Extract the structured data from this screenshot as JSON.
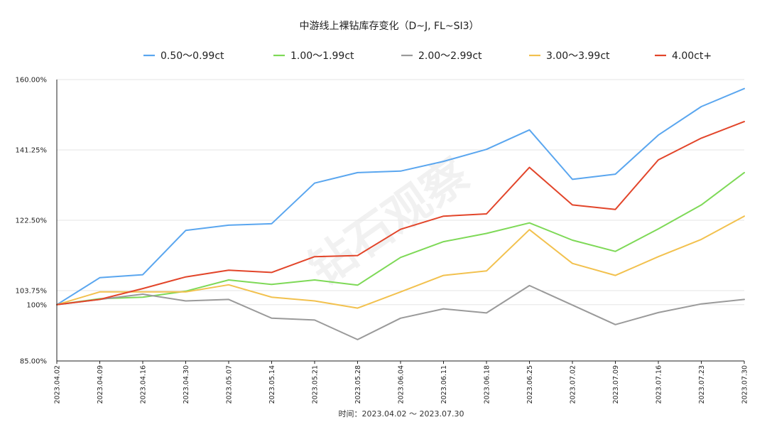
{
  "chart_data": {
    "type": "line",
    "title": "中游线上裸钻库存变化（D~J, FL~SI3）",
    "xlabel": "时间：2023.04.02 ～ 2023.07.30",
    "ylabel": "",
    "categories": [
      "2023.04.02",
      "2023.04.09",
      "2023.04.16",
      "2023.04.30",
      "2023.05.07",
      "2023.05.14",
      "2023.05.21",
      "2023.05.28",
      "2023.06.04",
      "2023.06.11",
      "2023.06.18",
      "2023.06.25",
      "2023.07.02",
      "2023.07.09",
      "2023.07.16",
      "2023.07.23",
      "2023.07.30"
    ],
    "y_ticks": [
      "160.00%",
      "141.25%",
      "122.50%",
      "103.75%",
      "100%",
      "85.00%"
    ],
    "y_tick_values": [
      160,
      141.25,
      122.5,
      103.75,
      100,
      85
    ],
    "ylim": [
      85,
      160
    ],
    "grid": true,
    "legend_position": "top",
    "watermark": "钻石观察",
    "series": [
      {
        "name": "0.50～0.99ct",
        "color": "#5aa6ef",
        "values": [
          100,
          107.2,
          108,
          119.8,
          121.2,
          121.6,
          132.4,
          135.2,
          135.6,
          138.2,
          141.4,
          146.6,
          133.4,
          134.8,
          145.2,
          152.8,
          157.6
        ]
      },
      {
        "name": "1.00～1.99ct",
        "color": "#7ed957",
        "values": [
          100,
          101.6,
          102,
          103.6,
          106.6,
          105.4,
          106.6,
          105.2,
          112.6,
          116.8,
          119,
          121.8,
          117.2,
          114.2,
          120.2,
          126.6,
          135.2
        ]
      },
      {
        "name": "2.00～2.99ct",
        "color": "#9a9a9a",
        "values": [
          100,
          101.4,
          102.8,
          101,
          101.4,
          96.4,
          95.9,
          90.7,
          96.4,
          98.9,
          97.8,
          105.1,
          99.9,
          94.7,
          97.9,
          100.2,
          101.4
        ]
      },
      {
        "name": "3.00～3.99ct",
        "color": "#f2c14e",
        "values": [
          100,
          103.4,
          103.4,
          103.4,
          105.3,
          102,
          101,
          99.1,
          103.4,
          107.8,
          109,
          120,
          111,
          107.8,
          112.8,
          117.4,
          123.6
        ]
      },
      {
        "name": "4.00ct+",
        "color": "#e2452a",
        "values": [
          100,
          101.4,
          104.3,
          107.4,
          109.2,
          108.6,
          112.8,
          113.1,
          120.1,
          123.6,
          124.2,
          136.6,
          126.6,
          125.4,
          138.6,
          144.4,
          148.8
        ]
      }
    ]
  }
}
